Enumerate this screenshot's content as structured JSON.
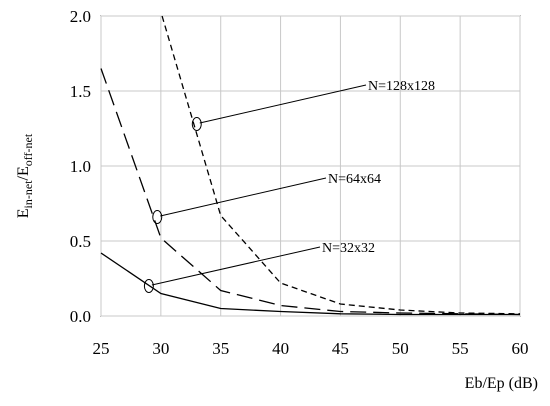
{
  "chart_data": {
    "type": "line",
    "title": "",
    "xlabel": "Eb/Ep (dB)",
    "ylabel": {
      "main": "E",
      "sub1": "in-net",
      "sep": "/E",
      "sub2": "off-net"
    },
    "xlim": [
      25,
      60
    ],
    "ylim": [
      0,
      2.0
    ],
    "x_ticks": [
      "25",
      "30",
      "35",
      "40",
      "45",
      "50",
      "55",
      "60"
    ],
    "y_ticks": [
      "0.0",
      "0.5",
      "1.0",
      "1.5",
      "2.0"
    ],
    "grid": true,
    "legend": "none",
    "series": [
      {
        "name": "N=32x32",
        "style": "solid",
        "color": "#000000",
        "x": [
          25,
          30,
          35,
          40,
          45,
          50,
          55,
          60
        ],
        "y": [
          0.42,
          0.15,
          0.05,
          0.03,
          0.015,
          0.01,
          0.01,
          0.01
        ],
        "annotation": {
          "x": 29.0,
          "y": 0.2
        }
      },
      {
        "name": "N=64x64",
        "style": "long-dash",
        "color": "#000000",
        "x": [
          25,
          30,
          35,
          40,
          45,
          50,
          55,
          60
        ],
        "y": [
          1.65,
          0.52,
          0.17,
          0.07,
          0.03,
          0.02,
          0.015,
          0.01
        ],
        "annotation": {
          "x": 29.7,
          "y": 0.66
        }
      },
      {
        "name": "N=128x128",
        "style": "short-dash",
        "color": "#000000",
        "x": [
          30.1,
          35,
          40,
          45,
          50,
          55,
          60
        ],
        "y": [
          2.0,
          0.67,
          0.22,
          0.08,
          0.04,
          0.02,
          0.015
        ],
        "annotation": {
          "x": 33.0,
          "y": 1.28
        }
      }
    ]
  }
}
